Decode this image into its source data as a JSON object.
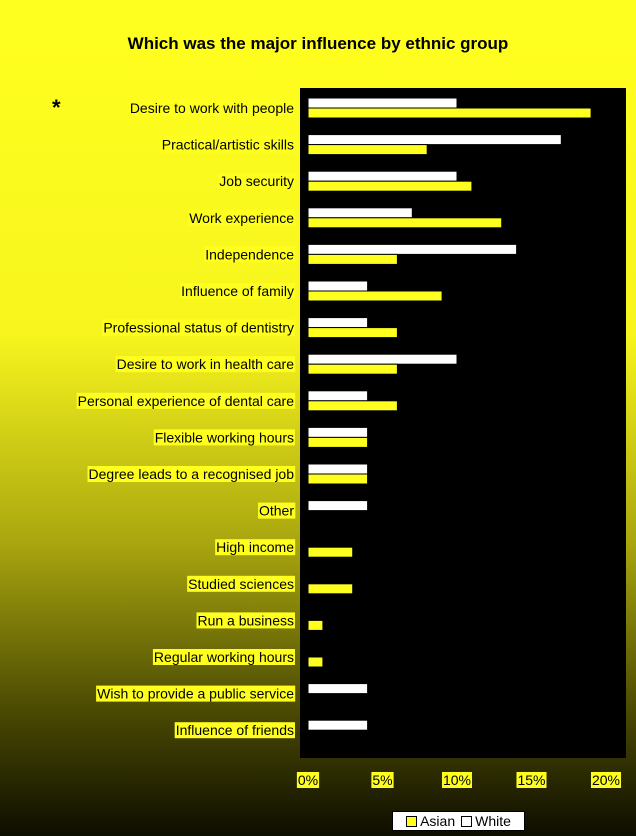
{
  "colors": {
    "asian": "#ffff1f",
    "white": "#ffffff",
    "plot_bg": "#000000"
  },
  "chart_data": {
    "type": "bar",
    "orientation": "horizontal",
    "title": "Which was the major influence by ethnic group",
    "annotation": "*",
    "categories": [
      "Desire to work with people",
      "Practical/artistic skills",
      "Job security",
      "Work experience",
      "Independence",
      "Influence of  family",
      "Professional status of dentistry",
      "Desire to work in health care",
      "Personal experience of dental care",
      "Flexible working hours",
      "Degree leads to a recognised job",
      "Other",
      "High income",
      "Studied sciences",
      "Run a business",
      "Regular working hours",
      "Wish to provide a public service",
      "Influence of friends"
    ],
    "series": [
      {
        "name": "White",
        "values": [
          10,
          17,
          10,
          7,
          14,
          4,
          4,
          10,
          4,
          4,
          4,
          4,
          0,
          0,
          0,
          0,
          4,
          4
        ]
      },
      {
        "name": "Asian",
        "values": [
          19,
          8,
          11,
          13,
          6,
          9,
          6,
          6,
          6,
          4,
          4,
          0,
          3,
          3,
          1,
          1,
          0,
          0
        ]
      }
    ],
    "xlim": [
      0,
      20
    ],
    "xticks": [
      "0%",
      "5%",
      "10%",
      "15%",
      "20%"
    ],
    "legend": {
      "position": "bottom",
      "entries": [
        "Asian",
        "White"
      ]
    },
    "grid": false
  }
}
